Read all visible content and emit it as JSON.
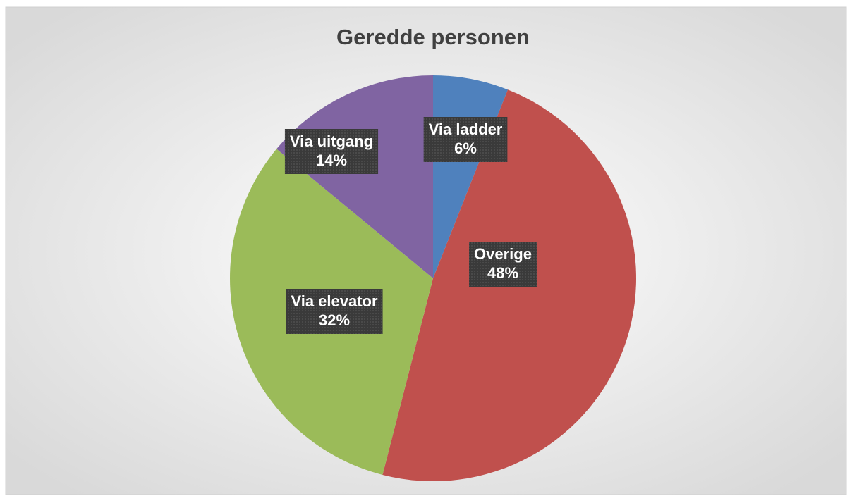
{
  "chart_data": {
    "type": "pie",
    "title": "Geredde personen",
    "categories": [
      "Via ladder",
      "Overige",
      "Via elevator",
      "Via uitgang"
    ],
    "values": [
      6,
      48,
      32,
      14
    ],
    "value_labels": [
      "6%",
      "48%",
      "32%",
      "14%"
    ],
    "colors": [
      "#4f81bd",
      "#c0504d",
      "#9bbb59",
      "#8064a2"
    ]
  }
}
